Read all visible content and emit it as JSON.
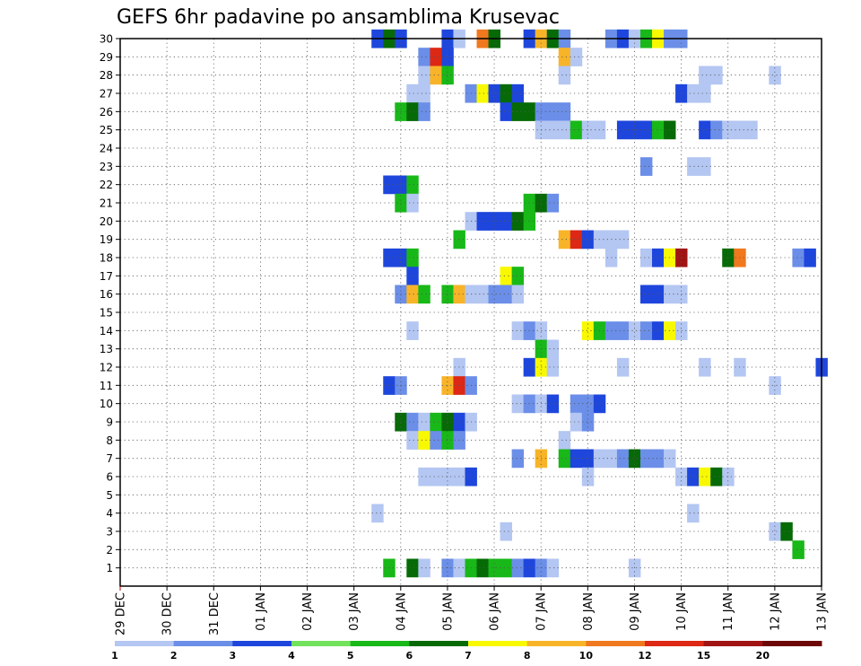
{
  "chart_data": {
    "type": "heatmap",
    "title": "GEFS 6hr padavine po ansamblima Krusevac",
    "x_tick_labels": [
      "29 DEC",
      "30 DEC",
      "31 DEC",
      "01 JAN",
      "02 JAN",
      "03 JAN",
      "04 JAN",
      "05 JAN",
      "06 JAN",
      "07 JAN",
      "08 JAN",
      "09 JAN",
      "10 JAN",
      "11 JAN",
      "12 JAN",
      "13 JAN"
    ],
    "y_tick_labels": [
      "1",
      "2",
      "3",
      "4",
      "5",
      "6",
      "7",
      "8",
      "9",
      "10",
      "11",
      "12",
      "13",
      "14",
      "15",
      "16",
      "17",
      "18",
      "19",
      "20",
      "21",
      "22",
      "23",
      "24",
      "25",
      "26",
      "27",
      "28",
      "29",
      "30"
    ],
    "xlim": [
      0,
      15
    ],
    "ylim": [
      0,
      30
    ],
    "grid": true,
    "time_step_days": 0.25,
    "colorbar": {
      "ticks": [
        "1",
        "2",
        "3",
        "4",
        "5",
        "6",
        "7",
        "8",
        "10",
        "12",
        "15",
        "20"
      ],
      "colors": [
        "#b4c6f2",
        "#6b8ee8",
        "#1e46dc",
        "#72e25c",
        "#18b818",
        "#066a06",
        "#f8f800",
        "#f8b428",
        "#f0781e",
        "#dc2814",
        "#a01414",
        "#6c0808"
      ]
    },
    "cells": [
      {
        "member": 30,
        "t": 5.5,
        "v": 3
      },
      {
        "member": 30,
        "t": 5.75,
        "v": 6
      },
      {
        "member": 30,
        "t": 6.0,
        "v": 3
      },
      {
        "member": 30,
        "t": 7.0,
        "v": 3
      },
      {
        "member": 30,
        "t": 7.25,
        "v": 1
      },
      {
        "member": 30,
        "t": 7.75,
        "v": 10
      },
      {
        "member": 30,
        "t": 8.0,
        "v": 6
      },
      {
        "member": 30,
        "t": 8.75,
        "v": 3
      },
      {
        "member": 30,
        "t": 9.0,
        "v": 8
      },
      {
        "member": 30,
        "t": 9.25,
        "v": 6
      },
      {
        "member": 30,
        "t": 9.5,
        "v": 2
      },
      {
        "member": 30,
        "t": 10.5,
        "v": 2
      },
      {
        "member": 30,
        "t": 10.75,
        "v": 3
      },
      {
        "member": 30,
        "t": 11.0,
        "v": 1
      },
      {
        "member": 30,
        "t": 11.25,
        "v": 5
      },
      {
        "member": 30,
        "t": 11.5,
        "v": 7
      },
      {
        "member": 30,
        "t": 11.75,
        "v": 2
      },
      {
        "member": 30,
        "t": 12.0,
        "v": 2
      },
      {
        "member": 29,
        "t": 6.5,
        "v": 2
      },
      {
        "member": 29,
        "t": 6.75,
        "v": 12
      },
      {
        "member": 29,
        "t": 7.0,
        "v": 3
      },
      {
        "member": 29,
        "t": 9.5,
        "v": 8
      },
      {
        "member": 29,
        "t": 9.75,
        "v": 1
      },
      {
        "member": 28,
        "t": 6.5,
        "v": 1
      },
      {
        "member": 28,
        "t": 6.75,
        "v": 8
      },
      {
        "member": 28,
        "t": 7.0,
        "v": 5
      },
      {
        "member": 28,
        "t": 9.5,
        "v": 1
      },
      {
        "member": 28,
        "t": 12.5,
        "v": 1
      },
      {
        "member": 28,
        "t": 12.75,
        "v": 1
      },
      {
        "member": 28,
        "t": 14.0,
        "v": 1
      },
      {
        "member": 27,
        "t": 6.25,
        "v": 1
      },
      {
        "member": 27,
        "t": 6.5,
        "v": 1
      },
      {
        "member": 27,
        "t": 7.5,
        "v": 2
      },
      {
        "member": 27,
        "t": 7.75,
        "v": 7
      },
      {
        "member": 27,
        "t": 8.0,
        "v": 3
      },
      {
        "member": 27,
        "t": 8.25,
        "v": 6
      },
      {
        "member": 27,
        "t": 8.5,
        "v": 3
      },
      {
        "member": 27,
        "t": 12.0,
        "v": 3
      },
      {
        "member": 27,
        "t": 12.25,
        "v": 1
      },
      {
        "member": 27,
        "t": 12.5,
        "v": 1
      },
      {
        "member": 26,
        "t": 6.0,
        "v": 5
      },
      {
        "member": 26,
        "t": 6.25,
        "v": 6
      },
      {
        "member": 26,
        "t": 6.5,
        "v": 2
      },
      {
        "member": 26,
        "t": 8.25,
        "v": 3
      },
      {
        "member": 26,
        "t": 8.5,
        "v": 6
      },
      {
        "member": 26,
        "t": 8.75,
        "v": 6
      },
      {
        "member": 26,
        "t": 9.0,
        "v": 2
      },
      {
        "member": 26,
        "t": 9.25,
        "v": 2
      },
      {
        "member": 26,
        "t": 9.5,
        "v": 2
      },
      {
        "member": 25,
        "t": 9.0,
        "v": 1
      },
      {
        "member": 25,
        "t": 9.25,
        "v": 1
      },
      {
        "member": 25,
        "t": 9.5,
        "v": 1
      },
      {
        "member": 25,
        "t": 9.75,
        "v": 5
      },
      {
        "member": 25,
        "t": 10.0,
        "v": 1
      },
      {
        "member": 25,
        "t": 10.25,
        "v": 1
      },
      {
        "member": 25,
        "t": 10.75,
        "v": 3
      },
      {
        "member": 25,
        "t": 11.0,
        "v": 3
      },
      {
        "member": 25,
        "t": 11.25,
        "v": 3
      },
      {
        "member": 25,
        "t": 11.5,
        "v": 5
      },
      {
        "member": 25,
        "t": 11.75,
        "v": 6
      },
      {
        "member": 25,
        "t": 12.5,
        "v": 3
      },
      {
        "member": 25,
        "t": 12.75,
        "v": 2
      },
      {
        "member": 25,
        "t": 13.0,
        "v": 1
      },
      {
        "member": 25,
        "t": 13.25,
        "v": 1
      },
      {
        "member": 25,
        "t": 13.5,
        "v": 1
      },
      {
        "member": 23,
        "t": 11.25,
        "v": 2
      },
      {
        "member": 23,
        "t": 12.25,
        "v": 1
      },
      {
        "member": 23,
        "t": 12.5,
        "v": 1
      },
      {
        "member": 22,
        "t": 5.75,
        "v": 3
      },
      {
        "member": 22,
        "t": 6.0,
        "v": 3
      },
      {
        "member": 22,
        "t": 6.25,
        "v": 5
      },
      {
        "member": 21,
        "t": 6.0,
        "v": 5
      },
      {
        "member": 21,
        "t": 6.25,
        "v": 1
      },
      {
        "member": 21,
        "t": 8.75,
        "v": 5
      },
      {
        "member": 21,
        "t": 9.0,
        "v": 6
      },
      {
        "member": 21,
        "t": 9.25,
        "v": 2
      },
      {
        "member": 20,
        "t": 7.5,
        "v": 1
      },
      {
        "member": 20,
        "t": 7.75,
        "v": 3
      },
      {
        "member": 20,
        "t": 8.0,
        "v": 3
      },
      {
        "member": 20,
        "t": 8.25,
        "v": 3
      },
      {
        "member": 20,
        "t": 8.5,
        "v": 6
      },
      {
        "member": 20,
        "t": 8.75,
        "v": 5
      },
      {
        "member": 19,
        "t": 7.25,
        "v": 5
      },
      {
        "member": 19,
        "t": 9.5,
        "v": 8
      },
      {
        "member": 19,
        "t": 9.75,
        "v": 12
      },
      {
        "member": 19,
        "t": 10.0,
        "v": 3
      },
      {
        "member": 19,
        "t": 10.25,
        "v": 1
      },
      {
        "member": 19,
        "t": 10.5,
        "v": 1
      },
      {
        "member": 19,
        "t": 10.75,
        "v": 1
      },
      {
        "member": 18,
        "t": 5.75,
        "v": 3
      },
      {
        "member": 18,
        "t": 6.0,
        "v": 3
      },
      {
        "member": 18,
        "t": 6.25,
        "v": 5
      },
      {
        "member": 18,
        "t": 10.5,
        "v": 1
      },
      {
        "member": 18,
        "t": 11.25,
        "v": 1
      },
      {
        "member": 18,
        "t": 11.5,
        "v": 3
      },
      {
        "member": 18,
        "t": 11.75,
        "v": 7
      },
      {
        "member": 18,
        "t": 12.0,
        "v": 15
      },
      {
        "member": 18,
        "t": 13.0,
        "v": 6
      },
      {
        "member": 18,
        "t": 13.25,
        "v": 10
      },
      {
        "member": 18,
        "t": 14.5,
        "v": 2
      },
      {
        "member": 18,
        "t": 14.75,
        "v": 3
      },
      {
        "member": 17,
        "t": 6.25,
        "v": 3
      },
      {
        "member": 17,
        "t": 8.25,
        "v": 7
      },
      {
        "member": 17,
        "t": 8.5,
        "v": 5
      },
      {
        "member": 16,
        "t": 6.0,
        "v": 2
      },
      {
        "member": 16,
        "t": 6.25,
        "v": 8
      },
      {
        "member": 16,
        "t": 6.5,
        "v": 5
      },
      {
        "member": 16,
        "t": 7.0,
        "v": 5
      },
      {
        "member": 16,
        "t": 7.25,
        "v": 8
      },
      {
        "member": 16,
        "t": 7.5,
        "v": 1
      },
      {
        "member": 16,
        "t": 7.75,
        "v": 1
      },
      {
        "member": 16,
        "t": 8.0,
        "v": 2
      },
      {
        "member": 16,
        "t": 8.25,
        "v": 2
      },
      {
        "member": 16,
        "t": 8.5,
        "v": 1
      },
      {
        "member": 16,
        "t": 11.25,
        "v": 3
      },
      {
        "member": 16,
        "t": 11.5,
        "v": 3
      },
      {
        "member": 16,
        "t": 11.75,
        "v": 1
      },
      {
        "member": 16,
        "t": 12.0,
        "v": 1
      },
      {
        "member": 14,
        "t": 6.25,
        "v": 1
      },
      {
        "member": 14,
        "t": 8.5,
        "v": 1
      },
      {
        "member": 14,
        "t": 8.75,
        "v": 2
      },
      {
        "member": 14,
        "t": 9.0,
        "v": 1
      },
      {
        "member": 14,
        "t": 10.0,
        "v": 7
      },
      {
        "member": 14,
        "t": 10.25,
        "v": 5
      },
      {
        "member": 14,
        "t": 10.5,
        "v": 2
      },
      {
        "member": 14,
        "t": 10.75,
        "v": 2
      },
      {
        "member": 14,
        "t": 11.0,
        "v": 1
      },
      {
        "member": 14,
        "t": 11.25,
        "v": 2
      },
      {
        "member": 14,
        "t": 11.5,
        "v": 3
      },
      {
        "member": 14,
        "t": 11.75,
        "v": 7
      },
      {
        "member": 14,
        "t": 12.0,
        "v": 1
      },
      {
        "member": 13,
        "t": 9.0,
        "v": 5
      },
      {
        "member": 13,
        "t": 9.25,
        "v": 1
      },
      {
        "member": 12,
        "t": 7.25,
        "v": 1
      },
      {
        "member": 12,
        "t": 8.75,
        "v": 3
      },
      {
        "member": 12,
        "t": 9.0,
        "v": 7
      },
      {
        "member": 12,
        "t": 9.25,
        "v": 1
      },
      {
        "member": 12,
        "t": 10.75,
        "v": 1
      },
      {
        "member": 12,
        "t": 12.5,
        "v": 1
      },
      {
        "member": 12,
        "t": 13.25,
        "v": 1
      },
      {
        "member": 12,
        "t": 15.0,
        "v": 3
      },
      {
        "member": 11,
        "t": 5.75,
        "v": 3
      },
      {
        "member": 11,
        "t": 6.0,
        "v": 2
      },
      {
        "member": 11,
        "t": 7.0,
        "v": 8
      },
      {
        "member": 11,
        "t": 7.25,
        "v": 12
      },
      {
        "member": 11,
        "t": 7.5,
        "v": 2
      },
      {
        "member": 11,
        "t": 14.0,
        "v": 1
      },
      {
        "member": 10,
        "t": 8.5,
        "v": 1
      },
      {
        "member": 10,
        "t": 8.75,
        "v": 2
      },
      {
        "member": 10,
        "t": 9.0,
        "v": 1
      },
      {
        "member": 10,
        "t": 9.25,
        "v": 3
      },
      {
        "member": 10,
        "t": 9.75,
        "v": 2
      },
      {
        "member": 10,
        "t": 10.0,
        "v": 2
      },
      {
        "member": 10,
        "t": 10.25,
        "v": 3
      },
      {
        "member": 9,
        "t": 6.0,
        "v": 6
      },
      {
        "member": 9,
        "t": 6.25,
        "v": 2
      },
      {
        "member": 9,
        "t": 6.5,
        "v": 1
      },
      {
        "member": 9,
        "t": 6.75,
        "v": 5
      },
      {
        "member": 9,
        "t": 7.0,
        "v": 6
      },
      {
        "member": 9,
        "t": 7.25,
        "v": 3
      },
      {
        "member": 9,
        "t": 7.5,
        "v": 1
      },
      {
        "member": 9,
        "t": 9.75,
        "v": 1
      },
      {
        "member": 9,
        "t": 10.0,
        "v": 2
      },
      {
        "member": 8,
        "t": 6.25,
        "v": 1
      },
      {
        "member": 8,
        "t": 6.5,
        "v": 7
      },
      {
        "member": 8,
        "t": 6.75,
        "v": 2
      },
      {
        "member": 8,
        "t": 7.0,
        "v": 5
      },
      {
        "member": 8,
        "t": 7.25,
        "v": 2
      },
      {
        "member": 8,
        "t": 9.5,
        "v": 1
      },
      {
        "member": 7,
        "t": 8.5,
        "v": 2
      },
      {
        "member": 7,
        "t": 9.0,
        "v": 8
      },
      {
        "member": 7,
        "t": 9.5,
        "v": 5
      },
      {
        "member": 7,
        "t": 9.75,
        "v": 3
      },
      {
        "member": 7,
        "t": 10.0,
        "v": 3
      },
      {
        "member": 7,
        "t": 10.25,
        "v": 1
      },
      {
        "member": 7,
        "t": 10.5,
        "v": 1
      },
      {
        "member": 7,
        "t": 10.75,
        "v": 2
      },
      {
        "member": 7,
        "t": 11.0,
        "v": 6
      },
      {
        "member": 7,
        "t": 11.25,
        "v": 2
      },
      {
        "member": 7,
        "t": 11.5,
        "v": 2
      },
      {
        "member": 7,
        "t": 11.75,
        "v": 1
      },
      {
        "member": 6,
        "t": 6.5,
        "v": 1
      },
      {
        "member": 6,
        "t": 6.75,
        "v": 1
      },
      {
        "member": 6,
        "t": 7.0,
        "v": 1
      },
      {
        "member": 6,
        "t": 7.25,
        "v": 1
      },
      {
        "member": 6,
        "t": 7.5,
        "v": 3
      },
      {
        "member": 6,
        "t": 10.0,
        "v": 1
      },
      {
        "member": 6,
        "t": 12.0,
        "v": 1
      },
      {
        "member": 6,
        "t": 12.25,
        "v": 3
      },
      {
        "member": 6,
        "t": 12.5,
        "v": 7
      },
      {
        "member": 6,
        "t": 12.75,
        "v": 6
      },
      {
        "member": 6,
        "t": 13.0,
        "v": 1
      },
      {
        "member": 4,
        "t": 5.5,
        "v": 1
      },
      {
        "member": 4,
        "t": 12.25,
        "v": 1
      },
      {
        "member": 3,
        "t": 8.25,
        "v": 1
      },
      {
        "member": 3,
        "t": 14.0,
        "v": 1
      },
      {
        "member": 3,
        "t": 14.25,
        "v": 6
      },
      {
        "member": 2,
        "t": 14.5,
        "v": 5
      },
      {
        "member": 1,
        "t": 5.75,
        "v": 5
      },
      {
        "member": 1,
        "t": 6.25,
        "v": 6
      },
      {
        "member": 1,
        "t": 6.5,
        "v": 1
      },
      {
        "member": 1,
        "t": 7.0,
        "v": 2
      },
      {
        "member": 1,
        "t": 7.25,
        "v": 1
      },
      {
        "member": 1,
        "t": 7.5,
        "v": 5
      },
      {
        "member": 1,
        "t": 7.75,
        "v": 6
      },
      {
        "member": 1,
        "t": 8.0,
        "v": 5
      },
      {
        "member": 1,
        "t": 8.25,
        "v": 5
      },
      {
        "member": 1,
        "t": 8.5,
        "v": 2
      },
      {
        "member": 1,
        "t": 8.75,
        "v": 3
      },
      {
        "member": 1,
        "t": 9.0,
        "v": 2
      },
      {
        "member": 1,
        "t": 9.25,
        "v": 1
      },
      {
        "member": 1,
        "t": 11.0,
        "v": 1
      }
    ]
  }
}
